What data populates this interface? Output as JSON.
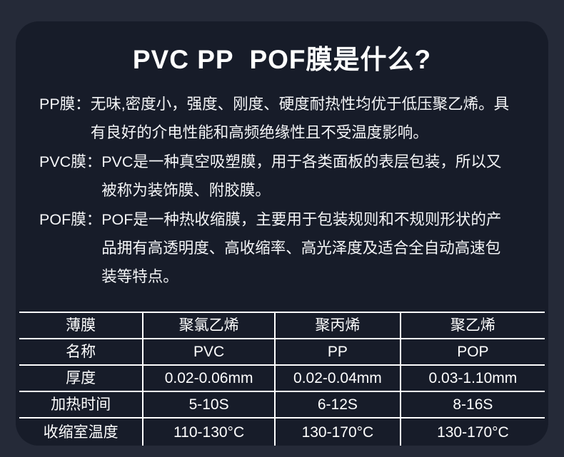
{
  "page": {
    "title": "PVC PP  POF膜是什么?"
  },
  "descriptions": [
    {
      "label": "PP膜：",
      "text": "无味,密度小，强度、刚度、硬度耐热性均优于低压聚乙烯。具有良好的介电性能和高频绝缘性且不受温度影响。"
    },
    {
      "label": "PVC膜：",
      "text": "PVC是一种真空吸塑膜，用于各类面板的表层包装，所以又被称为装饰膜、附胶膜。"
    },
    {
      "label": "POF膜：",
      "text": "POF是一种热收缩膜，主要用于包装规则和不规则形状的产品拥有高透明度、高收缩率、高光泽度及适合全自动高速包装等特点。"
    }
  ],
  "table": {
    "rows": [
      [
        "薄膜",
        "聚氯乙烯",
        "聚丙烯",
        "聚乙烯"
      ],
      [
        "名称",
        "PVC",
        "PP",
        "POP"
      ],
      [
        "厚度",
        "0.02-0.06mm",
        "0.02-0.04mm",
        "0.03-1.10mm"
      ],
      [
        "加热时间",
        "5-10S",
        "6-12S",
        "8-16S"
      ],
      [
        "收缩室温度",
        "110-130°C",
        "130-170°C",
        "130-170°C"
      ]
    ]
  },
  "colors": {
    "page_background": "#252a38",
    "card_background": "#171c29",
    "table_border": "#ffffff",
    "text": "#ffffff"
  }
}
